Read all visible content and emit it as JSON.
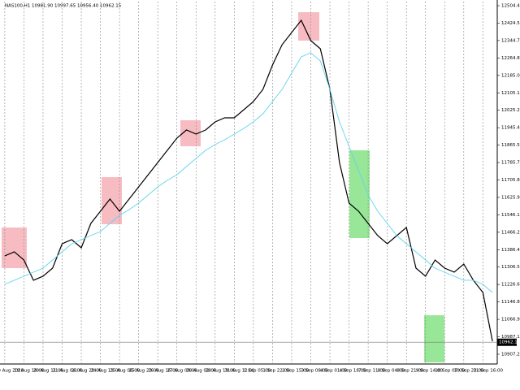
{
  "chart_data": {
    "type": "line",
    "title": "NAS100,H1  10981.90 10997.65 10956.40 10962.15",
    "categories": [
      "19 Aug 2020",
      null,
      "19 Aug 18:00",
      null,
      "20 Aug 11:00",
      null,
      "21 Aug 04:00",
      null,
      "21 Aug 20:00",
      null,
      "24 Aug 13:00",
      null,
      "25 Aug 06:00",
      null,
      "25 Aug 23:00",
      null,
      "26 Aug 16:00",
      null,
      "27 Aug 09:00",
      null,
      "28 Aug 02:00",
      null,
      "28 Aug 19:00",
      null,
      "31 Aug 12:00",
      null,
      "1 Sep 05:00",
      null,
      "1 Sep 22:00",
      null,
      "2 Sep 15:00",
      null,
      "3 Sep 08:00",
      null,
      "4 Sep 01:00",
      null,
      "4 Sep 18:00",
      null,
      "7 Sep 11:00",
      null,
      "8 Sep 04:00",
      null,
      "8 Sep 21:00",
      null,
      "9 Sep 14:00",
      null,
      "10 Sep 07:00",
      null,
      "10 Sep 23:00",
      null,
      "11 Sep 16:00",
      null
    ],
    "series": [
      {
        "color": "#000000",
        "values": [
          11357.8,
          11376.4,
          11339.1,
          11246.1,
          11264.7,
          11301.9,
          11413.6,
          11432.2,
          11395.0,
          11506.7,
          11562.5,
          11618.4,
          11562.5,
          11618.4,
          11674.2,
          11730.1,
          11785.9,
          11841.8,
          11897.6,
          11934.8,
          11916.2,
          11934.8,
          11972.0,
          11990.7,
          11990.7,
          12027.9,
          12065.1,
          12121.0,
          12232.7,
          12325.7,
          12381.6,
          12437.4,
          12344.4,
          12307.1,
          12121.0,
          11785.9,
          11599.8,
          11562.5,
          11506.7,
          11450.8,
          11413.6,
          11450.8,
          11488.1,
          11301.9,
          11264.7,
          11339.1,
          11301.9,
          11283.3,
          11320.5,
          11246.1,
          11190.2,
          10966.9
        ]
      },
      {
        "color": "#5fd3f0",
        "values": [
          11227.4,
          11246.1,
          11264.7,
          11283.3,
          11301.9,
          11339.1,
          11376.4,
          11413.6,
          11432.2,
          11450.8,
          11469.4,
          11506.7,
          11543.9,
          11570.0,
          11599.8,
          11637.0,
          11674.2,
          11704.0,
          11730.1,
          11767.3,
          11804.5,
          11841.8,
          11867.8,
          11890.2,
          11916.2,
          11942.2,
          11972.0,
          12009.3,
          12065.1,
          12121.0,
          12195.4,
          12269.9,
          12288.5,
          12251.3,
          12121.0,
          11972.0,
          11860.4,
          11748.7,
          11637.0,
          11562.5,
          11506.7,
          11450.8,
          11413.6,
          11376.4,
          11339.1,
          11301.9,
          11283.3,
          11264.7,
          11246.1,
          11246.1,
          11227.4,
          11190.2
        ]
      }
    ],
    "current_price": 10962.15,
    "ylim": [
      10862.5,
      12523.1
    ],
    "yticks": [
      10907.25,
      10987.11,
      11066.97,
      11146.83,
      11226.69,
      11306.55,
      11386.41,
      11466.27,
      11546.13,
      11625.99,
      11705.85,
      11785.71,
      11865.57,
      11945.43,
      12025.29,
      12105.15,
      12185.01,
      12264.87,
      12344.73,
      12424.59,
      12504.45
    ],
    "grid": true
  }
}
